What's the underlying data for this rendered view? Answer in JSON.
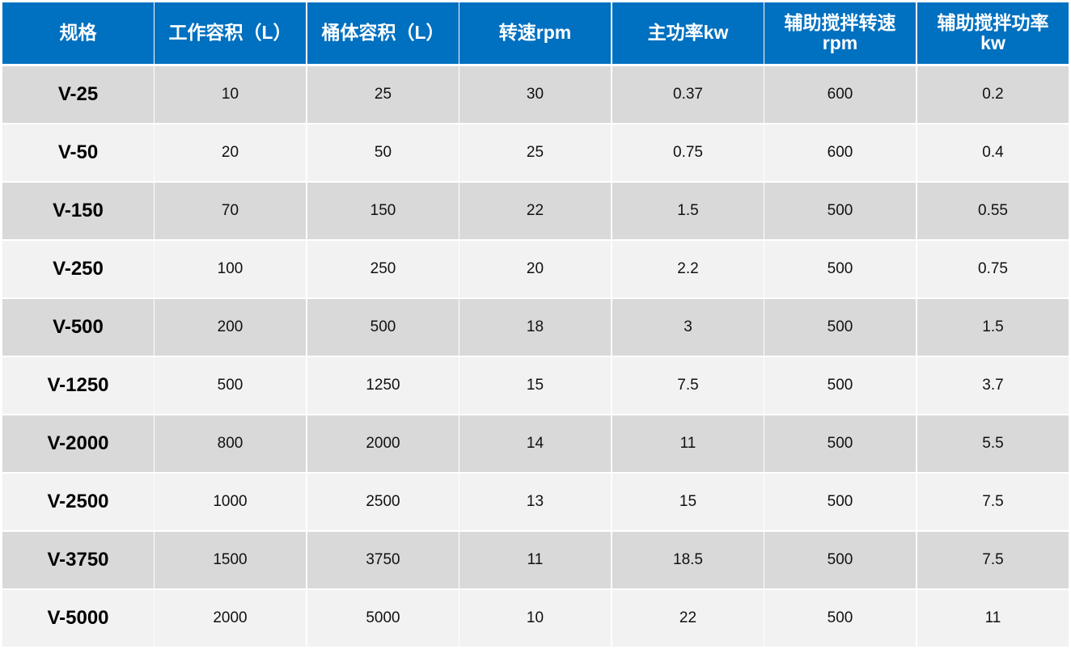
{
  "table": {
    "header": [
      "规格",
      "工作容积（L）",
      "桶体容积（L）",
      "转速rpm",
      "主功率kw",
      "辅助搅拌转速rpm",
      "辅助搅拌功率kw"
    ],
    "rows": [
      [
        "V-25",
        "10",
        "25",
        "30",
        "0.37",
        "600",
        "0.2"
      ],
      [
        "V-50",
        "20",
        "50",
        "25",
        "0.75",
        "600",
        "0.4"
      ],
      [
        "V-150",
        "70",
        "150",
        "22",
        "1.5",
        "500",
        "0.55"
      ],
      [
        "V-250",
        "100",
        "250",
        "20",
        "2.2",
        "500",
        "0.75"
      ],
      [
        "V-500",
        "200",
        "500",
        "18",
        "3",
        "500",
        "1.5"
      ],
      [
        "V-1250",
        "500",
        "1250",
        "15",
        "7.5",
        "500",
        "3.7"
      ],
      [
        "V-2000",
        "800",
        "2000",
        "14",
        "11",
        "500",
        "5.5"
      ],
      [
        "V-2500",
        "1000",
        "2500",
        "13",
        "15",
        "500",
        "7.5"
      ],
      [
        "V-3750",
        "1500",
        "3750",
        "11",
        "18.5",
        "500",
        "7.5"
      ],
      [
        "V-5000",
        "2000",
        "5000",
        "10",
        "22",
        "500",
        "11"
      ]
    ]
  }
}
